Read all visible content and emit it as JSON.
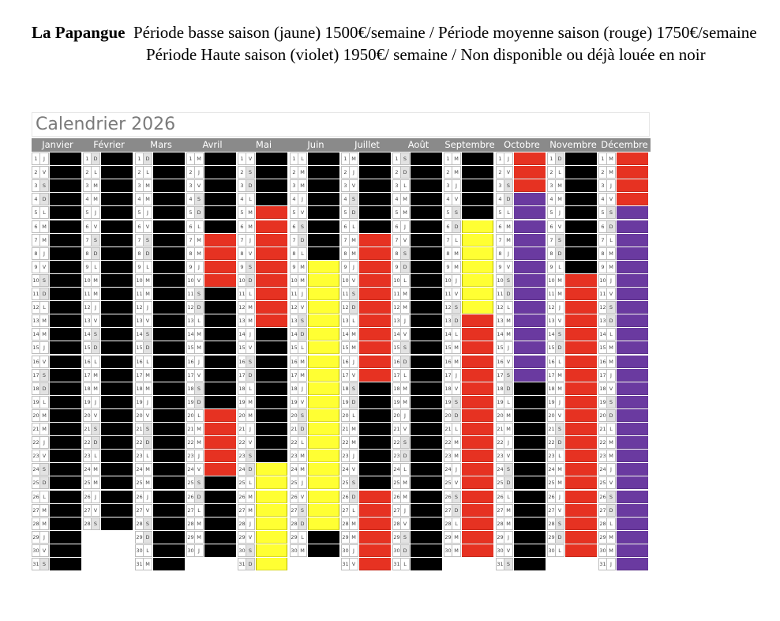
{
  "header": {
    "name": "La Papangue",
    "line1_rest": "Période basse saison (jaune) 1500€/semaine /  Période moyenne saison (rouge) 1750€/semaine",
    "line2": "Période Haute saison (violet) 1950€/ semaine / Non disponible ou déjà louée en noir"
  },
  "calendar_title": "Calendrier 2026",
  "legend_colors": {
    "K": "#000000",
    "R": "#e63222",
    "Y": "#ffff33",
    "V": "#6a3aa0",
    "W": "#ffffff"
  },
  "months": [
    {
      "name": "Janvier",
      "days": [
        [
          "J",
          "K"
        ],
        [
          "V",
          "K"
        ],
        [
          "S",
          "K"
        ],
        [
          "D",
          "K"
        ],
        [
          "L",
          "K"
        ],
        [
          "M",
          "K"
        ],
        [
          "M",
          "K"
        ],
        [
          "J",
          "K"
        ],
        [
          "V",
          "K"
        ],
        [
          "S",
          "K"
        ],
        [
          "D",
          "K"
        ],
        [
          "L",
          "K"
        ],
        [
          "M",
          "K"
        ],
        [
          "M",
          "K"
        ],
        [
          "J",
          "K"
        ],
        [
          "V",
          "K"
        ],
        [
          "S",
          "K"
        ],
        [
          "D",
          "K"
        ],
        [
          "L",
          "K"
        ],
        [
          "M",
          "K"
        ],
        [
          "M",
          "K"
        ],
        [
          "J",
          "K"
        ],
        [
          "V",
          "K"
        ],
        [
          "S",
          "K"
        ],
        [
          "D",
          "K"
        ],
        [
          "L",
          "K"
        ],
        [
          "M",
          "K"
        ],
        [
          "M",
          "K"
        ],
        [
          "J",
          "K"
        ],
        [
          "V",
          "K"
        ],
        [
          "S",
          "K"
        ]
      ]
    },
    {
      "name": "Février",
      "days": [
        [
          "D",
          "K"
        ],
        [
          "L",
          "K"
        ],
        [
          "M",
          "K"
        ],
        [
          "M",
          "K"
        ],
        [
          "J",
          "K"
        ],
        [
          "V",
          "K"
        ],
        [
          "S",
          "K"
        ],
        [
          "D",
          "K"
        ],
        [
          "L",
          "K"
        ],
        [
          "M",
          "K"
        ],
        [
          "M",
          "K"
        ],
        [
          "J",
          "K"
        ],
        [
          "V",
          "K"
        ],
        [
          "S",
          "K"
        ],
        [
          "D",
          "K"
        ],
        [
          "L",
          "K"
        ],
        [
          "M",
          "K"
        ],
        [
          "M",
          "K"
        ],
        [
          "J",
          "K"
        ],
        [
          "V",
          "K"
        ],
        [
          "S",
          "K"
        ],
        [
          "D",
          "K"
        ],
        [
          "L",
          "K"
        ],
        [
          "M",
          "K"
        ],
        [
          "M",
          "K"
        ],
        [
          "J",
          "K"
        ],
        [
          "V",
          "K"
        ],
        [
          "S",
          "K"
        ]
      ]
    },
    {
      "name": "Mars",
      "days": [
        [
          "D",
          "K"
        ],
        [
          "L",
          "K"
        ],
        [
          "M",
          "K"
        ],
        [
          "M",
          "K"
        ],
        [
          "J",
          "K"
        ],
        [
          "V",
          "K"
        ],
        [
          "S",
          "K"
        ],
        [
          "D",
          "K"
        ],
        [
          "L",
          "K"
        ],
        [
          "M",
          "K"
        ],
        [
          "M",
          "K"
        ],
        [
          "J",
          "K"
        ],
        [
          "V",
          "K"
        ],
        [
          "S",
          "K"
        ],
        [
          "D",
          "K"
        ],
        [
          "L",
          "K"
        ],
        [
          "M",
          "K"
        ],
        [
          "M",
          "K"
        ],
        [
          "J",
          "K"
        ],
        [
          "V",
          "K"
        ],
        [
          "S",
          "K"
        ],
        [
          "D",
          "K"
        ],
        [
          "L",
          "K"
        ],
        [
          "M",
          "K"
        ],
        [
          "M",
          "K"
        ],
        [
          "J",
          "K"
        ],
        [
          "V",
          "K"
        ],
        [
          "S",
          "K"
        ],
        [
          "D",
          "K"
        ],
        [
          "L",
          "K"
        ],
        [
          "M",
          "K"
        ]
      ]
    },
    {
      "name": "Avril",
      "days": [
        [
          "M",
          "K"
        ],
        [
          "J",
          "K"
        ],
        [
          "V",
          "K"
        ],
        [
          "S",
          "K"
        ],
        [
          "D",
          "K"
        ],
        [
          "L",
          "K"
        ],
        [
          "M",
          "R"
        ],
        [
          "M",
          "R"
        ],
        [
          "J",
          "R"
        ],
        [
          "V",
          "R"
        ],
        [
          "S",
          "K"
        ],
        [
          "D",
          "K"
        ],
        [
          "L",
          "K"
        ],
        [
          "M",
          "K"
        ],
        [
          "M",
          "K"
        ],
        [
          "J",
          "K"
        ],
        [
          "V",
          "K"
        ],
        [
          "S",
          "K"
        ],
        [
          "D",
          "K"
        ],
        [
          "L",
          "R"
        ],
        [
          "M",
          "R"
        ],
        [
          "M",
          "R"
        ],
        [
          "J",
          "R"
        ],
        [
          "V",
          "R"
        ],
        [
          "S",
          "K"
        ],
        [
          "D",
          "K"
        ],
        [
          "L",
          "K"
        ],
        [
          "M",
          "K"
        ],
        [
          "M",
          "K"
        ],
        [
          "J",
          "K"
        ]
      ]
    },
    {
      "name": "Mai",
      "days": [
        [
          "V",
          "K"
        ],
        [
          "S",
          "K"
        ],
        [
          "D",
          "K"
        ],
        [
          "L",
          "K"
        ],
        [
          "M",
          "R"
        ],
        [
          "M",
          "R"
        ],
        [
          "J",
          "R"
        ],
        [
          "V",
          "R"
        ],
        [
          "S",
          "R"
        ],
        [
          "D",
          "R"
        ],
        [
          "L",
          "R"
        ],
        [
          "M",
          "R"
        ],
        [
          "M",
          "R"
        ],
        [
          "J",
          "K"
        ],
        [
          "V",
          "K"
        ],
        [
          "S",
          "K"
        ],
        [
          "D",
          "K"
        ],
        [
          "L",
          "K"
        ],
        [
          "M",
          "K"
        ],
        [
          "M",
          "K"
        ],
        [
          "J",
          "K"
        ],
        [
          "V",
          "K"
        ],
        [
          "S",
          "K"
        ],
        [
          "D",
          "Y"
        ],
        [
          "L",
          "Y"
        ],
        [
          "M",
          "Y"
        ],
        [
          "M",
          "Y"
        ],
        [
          "J",
          "Y"
        ],
        [
          "V",
          "Y"
        ],
        [
          "S",
          "Y"
        ],
        [
          "D",
          "Y"
        ]
      ]
    },
    {
      "name": "Juin",
      "days": [
        [
          "L",
          "K"
        ],
        [
          "M",
          "K"
        ],
        [
          "M",
          "K"
        ],
        [
          "J",
          "K"
        ],
        [
          "V",
          "K"
        ],
        [
          "S",
          "K"
        ],
        [
          "D",
          "K"
        ],
        [
          "L",
          "K"
        ],
        [
          "M",
          "Y"
        ],
        [
          "M",
          "Y"
        ],
        [
          "J",
          "Y"
        ],
        [
          "V",
          "Y"
        ],
        [
          "S",
          "Y"
        ],
        [
          "D",
          "Y"
        ],
        [
          "L",
          "Y"
        ],
        [
          "M",
          "Y"
        ],
        [
          "M",
          "Y"
        ],
        [
          "J",
          "Y"
        ],
        [
          "V",
          "Y"
        ],
        [
          "S",
          "Y"
        ],
        [
          "D",
          "Y"
        ],
        [
          "L",
          "Y"
        ],
        [
          "M",
          "Y"
        ],
        [
          "M",
          "Y"
        ],
        [
          "J",
          "Y"
        ],
        [
          "V",
          "Y"
        ],
        [
          "S",
          "Y"
        ],
        [
          "D",
          "Y"
        ],
        [
          "L",
          "K"
        ],
        [
          "M",
          "K"
        ]
      ]
    },
    {
      "name": "Juillet",
      "days": [
        [
          "M",
          "K"
        ],
        [
          "J",
          "K"
        ],
        [
          "V",
          "K"
        ],
        [
          "S",
          "K"
        ],
        [
          "D",
          "K"
        ],
        [
          "L",
          "K"
        ],
        [
          "M",
          "R"
        ],
        [
          "M",
          "R"
        ],
        [
          "J",
          "R"
        ],
        [
          "V",
          "R"
        ],
        [
          "S",
          "R"
        ],
        [
          "D",
          "R"
        ],
        [
          "L",
          "R"
        ],
        [
          "M",
          "R"
        ],
        [
          "M",
          "R"
        ],
        [
          "J",
          "R"
        ],
        [
          "V",
          "R"
        ],
        [
          "S",
          "K"
        ],
        [
          "D",
          "K"
        ],
        [
          "L",
          "K"
        ],
        [
          "M",
          "K"
        ],
        [
          "M",
          "K"
        ],
        [
          "J",
          "K"
        ],
        [
          "V",
          "K"
        ],
        [
          "S",
          "K"
        ],
        [
          "D",
          "R"
        ],
        [
          "L",
          "R"
        ],
        [
          "M",
          "R"
        ],
        [
          "M",
          "R"
        ],
        [
          "J",
          "R"
        ],
        [
          "V",
          "R"
        ]
      ]
    },
    {
      "name": "Août",
      "days": [
        [
          "S",
          "K"
        ],
        [
          "D",
          "K"
        ],
        [
          "L",
          "K"
        ],
        [
          "M",
          "K"
        ],
        [
          "M",
          "K"
        ],
        [
          "J",
          "K"
        ],
        [
          "V",
          "K"
        ],
        [
          "S",
          "K"
        ],
        [
          "D",
          "K"
        ],
        [
          "L",
          "K"
        ],
        [
          "M",
          "K"
        ],
        [
          "M",
          "K"
        ],
        [
          "J",
          "K"
        ],
        [
          "V",
          "K"
        ],
        [
          "S",
          "K"
        ],
        [
          "D",
          "K"
        ],
        [
          "L",
          "K"
        ],
        [
          "M",
          "K"
        ],
        [
          "M",
          "K"
        ],
        [
          "J",
          "K"
        ],
        [
          "V",
          "K"
        ],
        [
          "S",
          "K"
        ],
        [
          "D",
          "K"
        ],
        [
          "L",
          "K"
        ],
        [
          "M",
          "K"
        ],
        [
          "M",
          "K"
        ],
        [
          "J",
          "K"
        ],
        [
          "V",
          "K"
        ],
        [
          "S",
          "K"
        ],
        [
          "D",
          "K"
        ],
        [
          "L",
          "K"
        ]
      ]
    },
    {
      "name": "Septembre",
      "days": [
        [
          "M",
          "K"
        ],
        [
          "M",
          "K"
        ],
        [
          "J",
          "K"
        ],
        [
          "V",
          "K"
        ],
        [
          "S",
          "K"
        ],
        [
          "D",
          "Y"
        ],
        [
          "L",
          "Y"
        ],
        [
          "M",
          "Y"
        ],
        [
          "M",
          "Y"
        ],
        [
          "J",
          "Y"
        ],
        [
          "V",
          "Y"
        ],
        [
          "S",
          "Y"
        ],
        [
          "D",
          "R"
        ],
        [
          "L",
          "R"
        ],
        [
          "M",
          "R"
        ],
        [
          "M",
          "R"
        ],
        [
          "J",
          "R"
        ],
        [
          "V",
          "R"
        ],
        [
          "S",
          "R"
        ],
        [
          "D",
          "R"
        ],
        [
          "L",
          "R"
        ],
        [
          "M",
          "R"
        ],
        [
          "M",
          "R"
        ],
        [
          "J",
          "R"
        ],
        [
          "V",
          "R"
        ],
        [
          "S",
          "R"
        ],
        [
          "D",
          "R"
        ],
        [
          "L",
          "R"
        ],
        [
          "M",
          "R"
        ],
        [
          "M",
          "R"
        ]
      ]
    },
    {
      "name": "Octobre",
      "days": [
        [
          "J",
          "R"
        ],
        [
          "V",
          "R"
        ],
        [
          "S",
          "R"
        ],
        [
          "D",
          "V"
        ],
        [
          "L",
          "V"
        ],
        [
          "M",
          "V"
        ],
        [
          "M",
          "V"
        ],
        [
          "J",
          "V"
        ],
        [
          "V",
          "V"
        ],
        [
          "S",
          "V"
        ],
        [
          "D",
          "V"
        ],
        [
          "L",
          "V"
        ],
        [
          "M",
          "V"
        ],
        [
          "M",
          "V"
        ],
        [
          "J",
          "V"
        ],
        [
          "V",
          "V"
        ],
        [
          "S",
          "V"
        ],
        [
          "D",
          "K"
        ],
        [
          "L",
          "K"
        ],
        [
          "M",
          "K"
        ],
        [
          "M",
          "K"
        ],
        [
          "J",
          "K"
        ],
        [
          "V",
          "K"
        ],
        [
          "S",
          "K"
        ],
        [
          "D",
          "K"
        ],
        [
          "L",
          "K"
        ],
        [
          "M",
          "K"
        ],
        [
          "M",
          "K"
        ],
        [
          "J",
          "K"
        ],
        [
          "V",
          "K"
        ],
        [
          "S",
          "K"
        ]
      ]
    },
    {
      "name": "Novembre",
      "days": [
        [
          "D",
          "K"
        ],
        [
          "L",
          "K"
        ],
        [
          "M",
          "K"
        ],
        [
          "M",
          "K"
        ],
        [
          "J",
          "K"
        ],
        [
          "V",
          "K"
        ],
        [
          "S",
          "K"
        ],
        [
          "D",
          "K"
        ],
        [
          "L",
          "K"
        ],
        [
          "M",
          "R"
        ],
        [
          "M",
          "R"
        ],
        [
          "J",
          "R"
        ],
        [
          "V",
          "R"
        ],
        [
          "S",
          "R"
        ],
        [
          "D",
          "R"
        ],
        [
          "L",
          "R"
        ],
        [
          "M",
          "R"
        ],
        [
          "M",
          "R"
        ],
        [
          "J",
          "R"
        ],
        [
          "V",
          "R"
        ],
        [
          "S",
          "R"
        ],
        [
          "D",
          "R"
        ],
        [
          "L",
          "R"
        ],
        [
          "M",
          "R"
        ],
        [
          "M",
          "R"
        ],
        [
          "J",
          "R"
        ],
        [
          "V",
          "R"
        ],
        [
          "S",
          "R"
        ],
        [
          "D",
          "R"
        ],
        [
          "L",
          "R"
        ]
      ]
    },
    {
      "name": "Décembre",
      "days": [
        [
          "M",
          "R"
        ],
        [
          "M",
          "R"
        ],
        [
          "J",
          "R"
        ],
        [
          "V",
          "R"
        ],
        [
          "S",
          "V"
        ],
        [
          "D",
          "V"
        ],
        [
          "L",
          "V"
        ],
        [
          "M",
          "V"
        ],
        [
          "M",
          "V"
        ],
        [
          "J",
          "V"
        ],
        [
          "V",
          "V"
        ],
        [
          "S",
          "V"
        ],
        [
          "D",
          "V"
        ],
        [
          "L",
          "V"
        ],
        [
          "M",
          "V"
        ],
        [
          "M",
          "V"
        ],
        [
          "J",
          "V"
        ],
        [
          "V",
          "V"
        ],
        [
          "S",
          "V"
        ],
        [
          "D",
          "V"
        ],
        [
          "L",
          "V"
        ],
        [
          "M",
          "V"
        ],
        [
          "M",
          "V"
        ],
        [
          "J",
          "V"
        ],
        [
          "V",
          "V"
        ],
        [
          "S",
          "V"
        ],
        [
          "D",
          "V"
        ],
        [
          "L",
          "V"
        ],
        [
          "M",
          "V"
        ],
        [
          "M",
          "V"
        ],
        [
          "J",
          "V"
        ]
      ]
    }
  ]
}
